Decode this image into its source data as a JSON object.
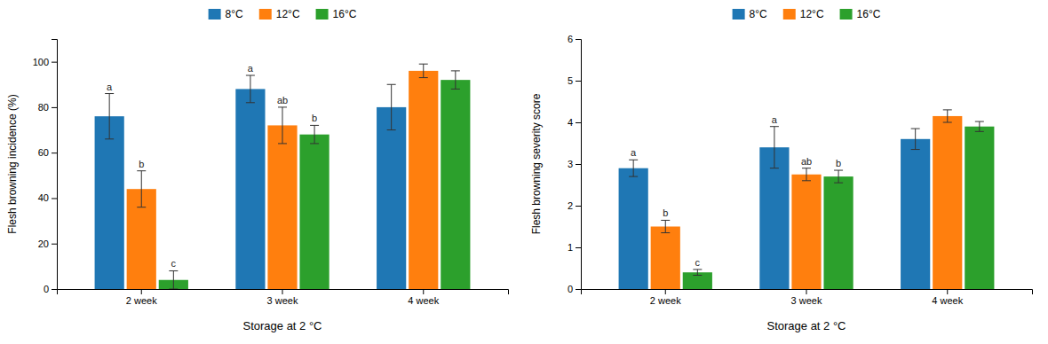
{
  "chart_data": [
    {
      "type": "bar",
      "ylabel": "Flesh browning incidence (%)",
      "xlabel": "Storage at 2 °C",
      "categories": [
        "2 week",
        "3 week",
        "4 week"
      ],
      "series": [
        {
          "name": "8°C",
          "values": [
            76,
            88,
            80
          ],
          "errors": [
            10,
            6,
            10
          ],
          "letters": [
            "a",
            "a",
            null
          ]
        },
        {
          "name": "12°C",
          "values": [
            44,
            72,
            96
          ],
          "errors": [
            8,
            8,
            3
          ],
          "letters": [
            "b",
            "ab",
            null
          ]
        },
        {
          "name": "16°C",
          "values": [
            4,
            68,
            92
          ],
          "errors": [
            4,
            4,
            4
          ],
          "letters": [
            "c",
            "b",
            null
          ]
        }
      ],
      "ylim": [
        0,
        110
      ],
      "yticks": [
        0,
        20,
        40,
        60,
        80,
        100
      ],
      "legend": "top"
    },
    {
      "type": "bar",
      "ylabel": "Flesh browning severity score",
      "xlabel": "Storage at 2 °C",
      "categories": [
        "2 week",
        "3 week",
        "4 week"
      ],
      "series": [
        {
          "name": "8°C",
          "values": [
            2.9,
            3.4,
            3.6
          ],
          "errors": [
            0.2,
            0.5,
            0.25
          ],
          "letters": [
            "a",
            "a",
            null
          ]
        },
        {
          "name": "12°C",
          "values": [
            1.5,
            2.75,
            4.15
          ],
          "errors": [
            0.15,
            0.15,
            0.15
          ],
          "letters": [
            "b",
            "ab",
            null
          ]
        },
        {
          "name": "16°C",
          "values": [
            0.4,
            2.7,
            3.9
          ],
          "errors": [
            0.07,
            0.15,
            0.12
          ],
          "letters": [
            "c",
            "b",
            null
          ]
        }
      ],
      "ylim": [
        0,
        6
      ],
      "yticks": [
        0,
        1,
        2,
        3,
        4,
        5,
        6
      ],
      "legend": "top"
    }
  ]
}
